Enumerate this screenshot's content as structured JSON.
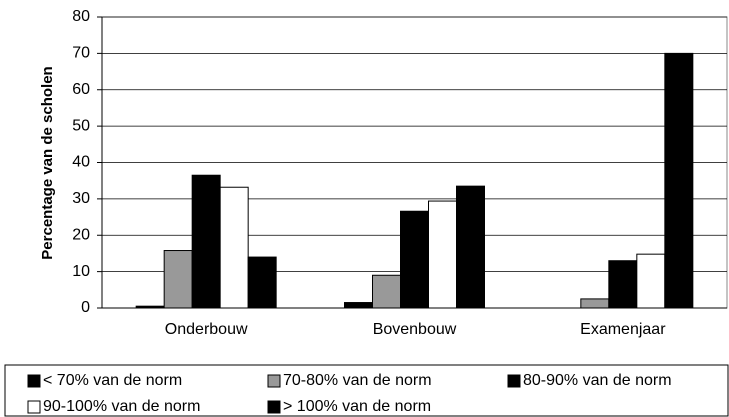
{
  "chart_data": {
    "type": "bar",
    "y_label": "Percentage van de scholen",
    "categories": [
      "Onderbouw",
      "Bovenbouw",
      "Examenjaar"
    ],
    "series": [
      {
        "name": "< 70% van de norm",
        "color": "#000000",
        "values": [
          0.5,
          1.5,
          0
        ]
      },
      {
        "name": "70-80% van de norm",
        "color": "#999999",
        "values": [
          15.8,
          9,
          2.5
        ]
      },
      {
        "name": "80-90% van de norm",
        "color": "#000000",
        "values": [
          36.5,
          26.6,
          13
        ]
      },
      {
        "name": "90-100% van de norm",
        "color": "#ffffff",
        "values": [
          33.2,
          29.4,
          14.8
        ]
      },
      {
        "name": "> 100% van de norm",
        "color": "#000000",
        "values": [
          14,
          33.5,
          70
        ]
      }
    ],
    "ylim": [
      0,
      80
    ],
    "yticks": [
      0,
      10,
      20,
      30,
      40,
      50,
      60,
      70,
      80
    ],
    "grid": true
  }
}
